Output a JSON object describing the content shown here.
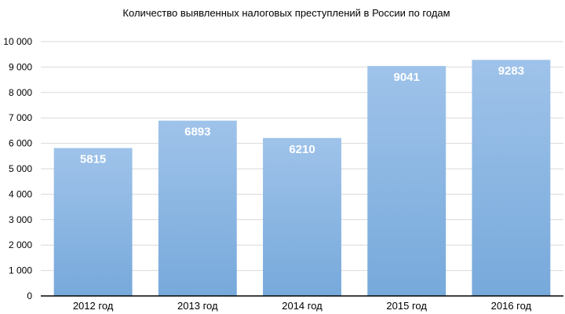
{
  "chart_data": {
    "type": "bar",
    "title": "Количество выявленных налоговых преступлений в России по годам",
    "categories": [
      "2012 год",
      "2013 год",
      "2014 год",
      "2015 год",
      "2016 год"
    ],
    "values": [
      5815,
      6893,
      6210,
      9041,
      9283
    ],
    "data_labels": [
      "5815",
      "6893",
      "6210",
      "9041",
      "9283"
    ],
    "ylim": [
      0,
      10000
    ],
    "yticks": [
      0,
      1000,
      2000,
      3000,
      4000,
      5000,
      6000,
      7000,
      8000,
      9000,
      10000
    ],
    "ytick_labels": [
      "0",
      "1 000",
      "2 000",
      "3 000",
      "4 000",
      "5 000",
      "6 000",
      "7 000",
      "8 000",
      "9 000",
      "10 000"
    ],
    "grid": true,
    "legend": "none",
    "bar_color_top": "#9fc3ea",
    "bar_color_bottom": "#77a9db"
  }
}
